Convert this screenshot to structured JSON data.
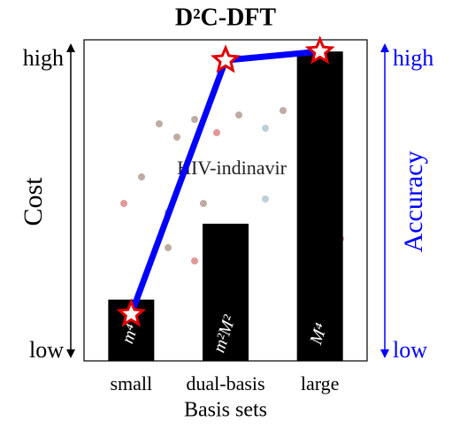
{
  "chart_data": {
    "type": "bar-line",
    "title": "D²C-DFT",
    "x_label": "Basis sets",
    "annotation": "HIV-indinavir",
    "categories": [
      "small",
      "dual-basis",
      "large"
    ],
    "bar_labels": [
      "m⁴",
      "m²M²",
      "M⁴"
    ],
    "series": [
      {
        "name": "Cost",
        "color": "#000000",
        "kind": "bar",
        "values": [
          0.18,
          0.44,
          1.03
        ]
      },
      {
        "name": "Accuracy",
        "color": "#0000ff",
        "kind": "line",
        "axis": "y2",
        "values": [
          0.13,
          1.0,
          1.03
        ]
      }
    ],
    "ylim": [
      -0.03,
      1.07
    ],
    "yticks": [
      {
        "value": 0,
        "label": "low"
      },
      {
        "value": 1,
        "label": "high"
      }
    ],
    "y2lim": [
      -0.03,
      1.07
    ],
    "y2ticks": [
      {
        "value": 0,
        "label": "low"
      },
      {
        "value": 1,
        "label": "high"
      }
    ],
    "marker_color": "#e00000"
  }
}
